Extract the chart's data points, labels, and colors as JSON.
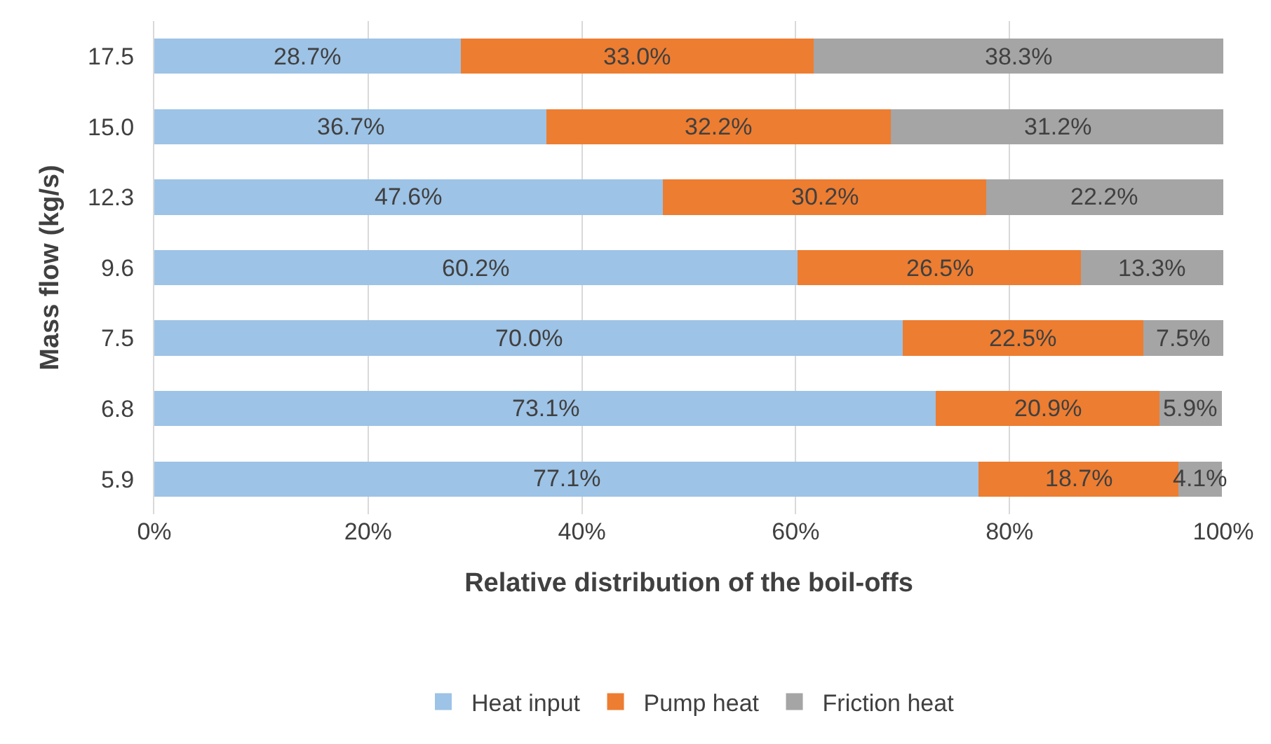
{
  "chart_data": {
    "type": "bar",
    "orientation": "horizontal",
    "stacked": true,
    "xlabel": "Relative distribution of the boil-offs",
    "ylabel": "Mass flow (kg/s)",
    "categories": [
      "17.5",
      "15.0",
      "12.3",
      "9.6",
      "7.5",
      "6.8",
      "5.9"
    ],
    "series": [
      {
        "name": "Heat input",
        "color": "#9dc3e6",
        "values": [
          28.7,
          36.7,
          47.6,
          60.2,
          70.0,
          73.1,
          77.1
        ],
        "value_labels": [
          "28.7%",
          "36.7%",
          "47.6%",
          "60.2%",
          "70.0%",
          "73.1%",
          "77.1%"
        ]
      },
      {
        "name": "Pump heat",
        "color": "#ed7d31",
        "values": [
          33.0,
          32.2,
          30.2,
          26.5,
          22.5,
          20.9,
          18.7
        ],
        "value_labels": [
          "33.0%",
          "32.2%",
          "30.2%",
          "26.5%",
          "22.5%",
          "20.9%",
          "18.7%"
        ]
      },
      {
        "name": "Friction heat",
        "color": "#a5a5a5",
        "values": [
          38.3,
          31.2,
          22.2,
          13.3,
          7.5,
          5.9,
          4.1
        ],
        "value_labels": [
          "38.3%",
          "31.2%",
          "22.2%",
          "13.3%",
          "7.5%",
          "5.9%",
          "4.1%"
        ]
      }
    ],
    "xlim": [
      0,
      100
    ],
    "xticks": [
      {
        "value": 0,
        "label": "0%"
      },
      {
        "value": 20,
        "label": "20%"
      },
      {
        "value": 40,
        "label": "40%"
      },
      {
        "value": 60,
        "label": "60%"
      },
      {
        "value": 80,
        "label": "80%"
      },
      {
        "value": 100,
        "label": "100%"
      }
    ],
    "grid": "x",
    "legend": "bottom"
  }
}
